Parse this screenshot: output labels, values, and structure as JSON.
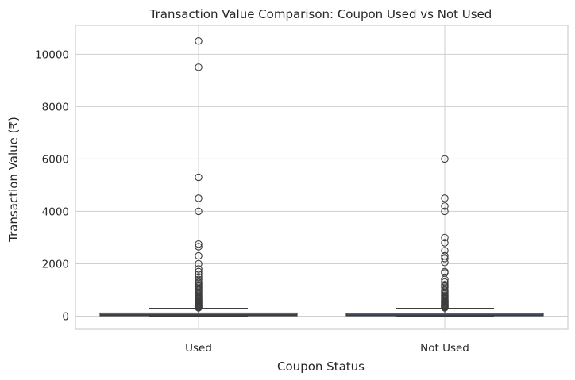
{
  "chart_data": {
    "type": "box",
    "title": "Transaction Value Comparison: Coupon Used vs Not Used",
    "xlabel": "Coupon Status",
    "ylabel": "Transaction Value (₹)",
    "categories": [
      "Used",
      "Not Used"
    ],
    "ylim": [
      -500,
      11100
    ],
    "yticks": [
      0,
      2000,
      4000,
      6000,
      8000,
      10000
    ],
    "grid": true,
    "colors": [
      "#4c72b0",
      "#4c72b0"
    ],
    "boxes": [
      {
        "category": "Used",
        "whisker_low": 0,
        "q1": 15,
        "median": 50,
        "q3": 120,
        "whisker_high": 300,
        "fliers": [
          10500,
          9500,
          5300,
          4500,
          4000,
          2750,
          2650,
          2300,
          2000,
          1800,
          1700,
          1600,
          1500,
          1400,
          1300,
          1250,
          1200,
          1150,
          1100,
          1050,
          1000,
          950,
          900,
          850,
          800,
          760,
          720,
          680,
          640,
          600,
          570,
          540,
          510,
          480,
          450,
          420,
          400,
          380,
          360,
          340,
          320
        ]
      },
      {
        "category": "Not Used",
        "whisker_low": 0,
        "q1": 15,
        "median": 45,
        "q3": 115,
        "whisker_high": 300,
        "fliers": [
          6000,
          4500,
          4200,
          4000,
          3000,
          2800,
          2500,
          2300,
          2200,
          2050,
          1700,
          1650,
          1400,
          1300,
          1200,
          1150,
          1100,
          1000,
          950,
          900,
          850,
          800,
          760,
          720,
          680,
          640,
          600,
          570,
          540,
          510,
          480,
          450,
          420,
          400,
          380,
          360,
          340,
          320
        ]
      }
    ]
  }
}
